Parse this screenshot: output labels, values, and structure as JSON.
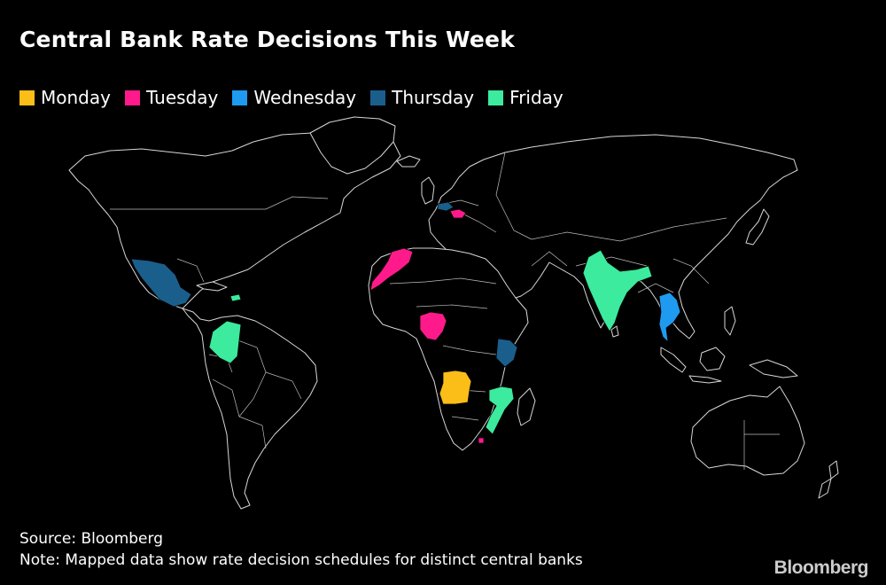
{
  "title": "Central Bank Rate Decisions This Week",
  "legend": [
    {
      "label": "Monday",
      "color": "#fbbd18"
    },
    {
      "label": "Tuesday",
      "color": "#ff1a8c"
    },
    {
      "label": "Wednesday",
      "color": "#1e9bf0"
    },
    {
      "label": "Thursday",
      "color": "#1a5f8c"
    },
    {
      "label": "Friday",
      "color": "#3ceb9d"
    }
  ],
  "countries": [
    {
      "name": "Angola",
      "day": "Monday"
    },
    {
      "name": "Morocco",
      "day": "Tuesday"
    },
    {
      "name": "Nigeria",
      "day": "Tuesday"
    },
    {
      "name": "Hungary",
      "day": "Tuesday"
    },
    {
      "name": "Eswatini",
      "day": "Tuesday"
    },
    {
      "name": "Thailand",
      "day": "Wednesday"
    },
    {
      "name": "Mexico",
      "day": "Thursday"
    },
    {
      "name": "Czech Republic",
      "day": "Thursday"
    },
    {
      "name": "Kenya",
      "day": "Thursday"
    },
    {
      "name": "Colombia",
      "day": "Friday"
    },
    {
      "name": "India",
      "day": "Friday"
    },
    {
      "name": "Mozambique",
      "day": "Friday"
    },
    {
      "name": "Dominican Republic",
      "day": "Friday"
    }
  ],
  "footer": {
    "source": "Source: Bloomberg",
    "note": "Note: Mapped data show rate decision schedules for distinct central banks",
    "brand": "Bloomberg"
  }
}
